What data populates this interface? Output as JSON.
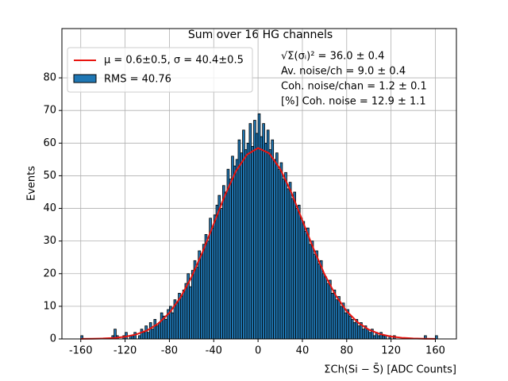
{
  "chart_data": {
    "type": "histogram",
    "title": "Sum over 16 HG channels",
    "xlabel": "ΣCh(Si − S̄) [ADC Counts]",
    "ylabel": "Events",
    "bins": [
      -160,
      -158,
      -156,
      -154,
      -152,
      -150,
      -148,
      -146,
      -144,
      -142,
      -140,
      -138,
      -136,
      -134,
      -132,
      -130,
      -128,
      -126,
      -124,
      -122,
      -120,
      -118,
      -116,
      -114,
      -112,
      -110,
      -108,
      -106,
      -104,
      -102,
      -100,
      -98,
      -96,
      -94,
      -92,
      -90,
      -88,
      -86,
      -84,
      -82,
      -80,
      -78,
      -76,
      -74,
      -72,
      -70,
      -68,
      -66,
      -64,
      -62,
      -60,
      -58,
      -56,
      -54,
      -52,
      -50,
      -48,
      -46,
      -44,
      -42,
      -40,
      -38,
      -36,
      -34,
      -32,
      -30,
      -28,
      -26,
      -24,
      -22,
      -20,
      -18,
      -16,
      -14,
      -12,
      -10,
      -8,
      -6,
      -4,
      -2,
      0,
      2,
      4,
      6,
      8,
      10,
      12,
      14,
      16,
      18,
      20,
      22,
      24,
      26,
      28,
      30,
      32,
      34,
      36,
      38,
      40,
      42,
      44,
      46,
      48,
      50,
      52,
      54,
      56,
      58,
      60,
      62,
      64,
      66,
      68,
      70,
      72,
      74,
      76,
      78,
      80,
      82,
      84,
      86,
      88,
      90,
      92,
      94,
      96,
      98,
      100,
      102,
      104,
      106,
      108,
      110,
      112,
      114,
      116,
      118,
      120,
      122,
      124,
      126,
      128,
      130,
      132,
      134,
      136,
      138,
      140,
      142,
      144,
      146,
      148,
      150,
      152,
      154,
      156,
      158,
      160,
      162
    ],
    "counts": [
      1,
      0,
      0,
      0,
      0,
      0,
      0,
      0,
      0,
      0,
      0,
      0,
      0,
      0,
      1,
      3,
      1,
      0,
      0,
      1,
      2,
      0,
      1,
      1,
      2,
      0,
      1,
      3,
      2,
      4,
      2,
      5,
      3,
      6,
      4,
      5,
      8,
      7,
      6,
      9,
      10,
      8,
      12,
      11,
      14,
      13,
      15,
      17,
      20,
      16,
      21,
      24,
      22,
      27,
      26,
      29,
      32,
      30,
      37,
      34,
      38,
      41,
      44,
      40,
      47,
      45,
      52,
      49,
      56,
      53,
      55,
      61,
      57,
      64,
      58,
      60,
      66,
      59,
      67,
      63,
      69,
      62,
      66,
      60,
      64,
      58,
      61,
      55,
      57,
      52,
      54,
      49,
      51,
      46,
      48,
      43,
      45,
      40,
      41,
      37,
      36,
      33,
      34,
      29,
      30,
      26,
      27,
      23,
      24,
      20,
      19,
      17,
      18,
      14,
      15,
      12,
      13,
      10,
      11,
      8,
      9,
      7,
      6,
      5,
      6,
      4,
      5,
      3,
      4,
      3,
      2,
      3,
      1,
      2,
      1,
      2,
      1,
      1,
      0,
      1,
      0,
      1,
      0,
      0,
      0,
      0,
      0,
      0,
      0,
      0,
      0,
      0,
      0,
      0,
      0,
      1,
      0,
      0,
      0,
      0,
      1
    ],
    "color": "#1f77b4",
    "edgecolor": "#000000",
    "hist_label": "RMS = 40.76",
    "fit": {
      "name": "μ = 0.6±0.5, σ = 40.4±0.5",
      "color": "#e8140f",
      "x": [
        -160,
        -150,
        -140,
        -130,
        -120,
        -110,
        -100,
        -90,
        -80,
        -70,
        -60,
        -50,
        -40,
        -30,
        -20,
        -10,
        0,
        10,
        20,
        30,
        40,
        50,
        60,
        70,
        80,
        90,
        100,
        110,
        120,
        130,
        140,
        150,
        160
      ],
      "y": [
        0.02,
        0.06,
        0.14,
        0.31,
        0.68,
        1.38,
        2.63,
        4.73,
        8.0,
        12.7,
        19.0,
        26.7,
        35.3,
        43.9,
        51.4,
        56.5,
        58.5,
        56.9,
        52.1,
        44.9,
        36.3,
        27.7,
        19.8,
        13.4,
        8.5,
        5.05,
        2.84,
        1.5,
        0.74,
        0.35,
        0.15,
        0.06,
        0.02
      ]
    },
    "annotations": [
      "√Σ(σᵢ)² = 36.0 ± 0.4",
      "Av. noise/ch  = 9.0 ± 0.4",
      "Coh. noise/chan  = 1.2 ± 0.1",
      "[%] Coh. noise  = 12.9 ± 1.1"
    ],
    "xlim": [
      -177,
      179
    ],
    "ylim": [
      0,
      95.1
    ],
    "xticks": [
      -160,
      -120,
      -80,
      -40,
      0,
      40,
      80,
      120,
      160
    ],
    "yticks": [
      0,
      10,
      20,
      30,
      40,
      50,
      60,
      70,
      80
    ],
    "grid": true,
    "legend": "upper left"
  }
}
